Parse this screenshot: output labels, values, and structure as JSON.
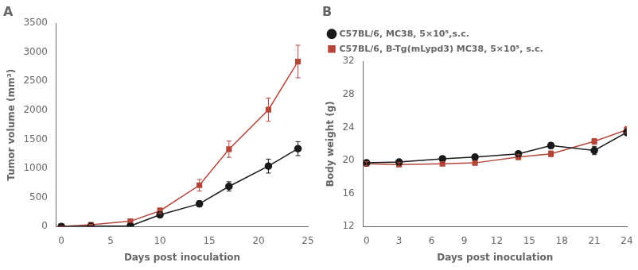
{
  "chart_data": [
    {
      "type": "line",
      "title": "A",
      "x_label": "Days post inoculation",
      "y_label": "Tumor volume (mm³)",
      "xlim": [
        -0.5,
        25
      ],
      "ylim": [
        0,
        3500
      ],
      "xticks": [
        0,
        5,
        10,
        15,
        20,
        25
      ],
      "yticks": [
        0,
        500,
        1000,
        1500,
        2000,
        2500,
        3000,
        3500
      ],
      "grid": false,
      "series": [
        {
          "color": "#1a1a1a",
          "marker": "circle",
          "x": [
            0,
            3,
            7,
            10,
            14,
            17,
            21,
            24
          ],
          "values": [
            0,
            5,
            10,
            200,
            390,
            690,
            1040,
            1340
          ],
          "yerr": [
            0,
            0,
            5,
            30,
            50,
            80,
            120,
            120
          ]
        },
        {
          "color": "#b5473a",
          "marker": "square",
          "x": [
            0,
            3,
            7,
            10,
            14,
            17,
            21,
            24
          ],
          "values": [
            0,
            30,
            90,
            270,
            710,
            1330,
            2010,
            2840
          ],
          "yerr": [
            0,
            8,
            20,
            50,
            100,
            140,
            200,
            280
          ]
        }
      ]
    },
    {
      "type": "line",
      "title": "B",
      "x_label": "Days post inoculation",
      "y_label": "Body weight (g)",
      "xlim": [
        -0.3,
        24
      ],
      "ylim": [
        12,
        32
      ],
      "xticks": [
        0,
        3,
        6,
        9,
        12,
        15,
        18,
        21,
        24
      ],
      "yticks": [
        12,
        16,
        20,
        24,
        28,
        32
      ],
      "grid": false,
      "legend": "upper left",
      "series": [
        {
          "name": "C57BL/6, MC38, 5×10⁵,s.c.",
          "color": "#1a1a1a",
          "marker": "circle",
          "x": [
            0,
            3,
            7,
            10,
            14,
            17,
            21,
            24
          ],
          "values": [
            19.7,
            19.8,
            20.2,
            20.4,
            20.8,
            21.8,
            21.2,
            23.4
          ],
          "yerr": [
            0.25,
            0.25,
            0.3,
            0.25,
            0.3,
            0.35,
            0.5,
            0.4
          ]
        },
        {
          "name": "C57BL/6, B-Tg(mLypd3) MC38, 5×10⁵, s.c.",
          "color": "#b5473a",
          "marker": "square",
          "x": [
            0,
            3,
            7,
            10,
            14,
            17,
            21,
            24
          ],
          "values": [
            19.6,
            19.5,
            19.6,
            19.7,
            20.4,
            20.8,
            22.3,
            23.7
          ],
          "yerr": [
            0.25,
            0.25,
            0.25,
            0.25,
            0.3,
            0.35,
            0.35,
            0.4
          ]
        }
      ]
    }
  ]
}
